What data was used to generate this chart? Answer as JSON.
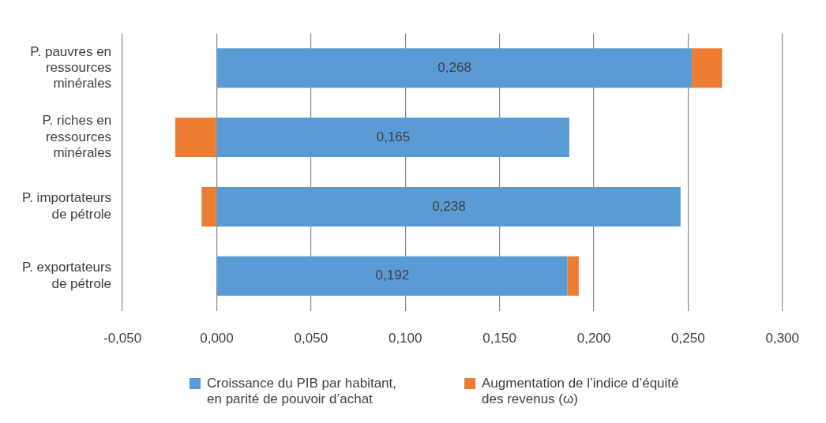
{
  "chart_data": {
    "type": "bar",
    "orientation": "horizontal",
    "stacked": true,
    "categories": [
      "P. pauvres en ressources minérales",
      "P. riches en ressources minérales",
      "P. importateurs de pétrole",
      "P. exportateurs de pétrole"
    ],
    "series": [
      {
        "name": "Croissance du PIB par habitant, en parité de pouvoir d’achat",
        "color": "#5b9bd5",
        "values": [
          0.252,
          0.187,
          0.246,
          0.186
        ]
      },
      {
        "name": "Augmentation de l’indice d’équité des revenus (ω)",
        "color": "#ed7d31",
        "values": [
          0.016,
          -0.022,
          -0.008,
          0.006
        ]
      }
    ],
    "totals": [
      "0,268",
      "0,165",
      "0,238",
      "0,192"
    ],
    "xlim": [
      -0.05,
      0.3
    ],
    "xticks": [
      {
        "value": -0.05,
        "label": "-0,050"
      },
      {
        "value": 0,
        "label": "0,000"
      },
      {
        "value": 0.05,
        "label": "0,050"
      },
      {
        "value": 0.1,
        "label": "0,100"
      },
      {
        "value": 0.15,
        "label": "0,150"
      },
      {
        "value": 0.2,
        "label": "0,200"
      },
      {
        "value": 0.25,
        "label": "0,250"
      },
      {
        "value": 0.3,
        "label": "0,300"
      }
    ],
    "grid": "x",
    "legend": "bottom"
  }
}
